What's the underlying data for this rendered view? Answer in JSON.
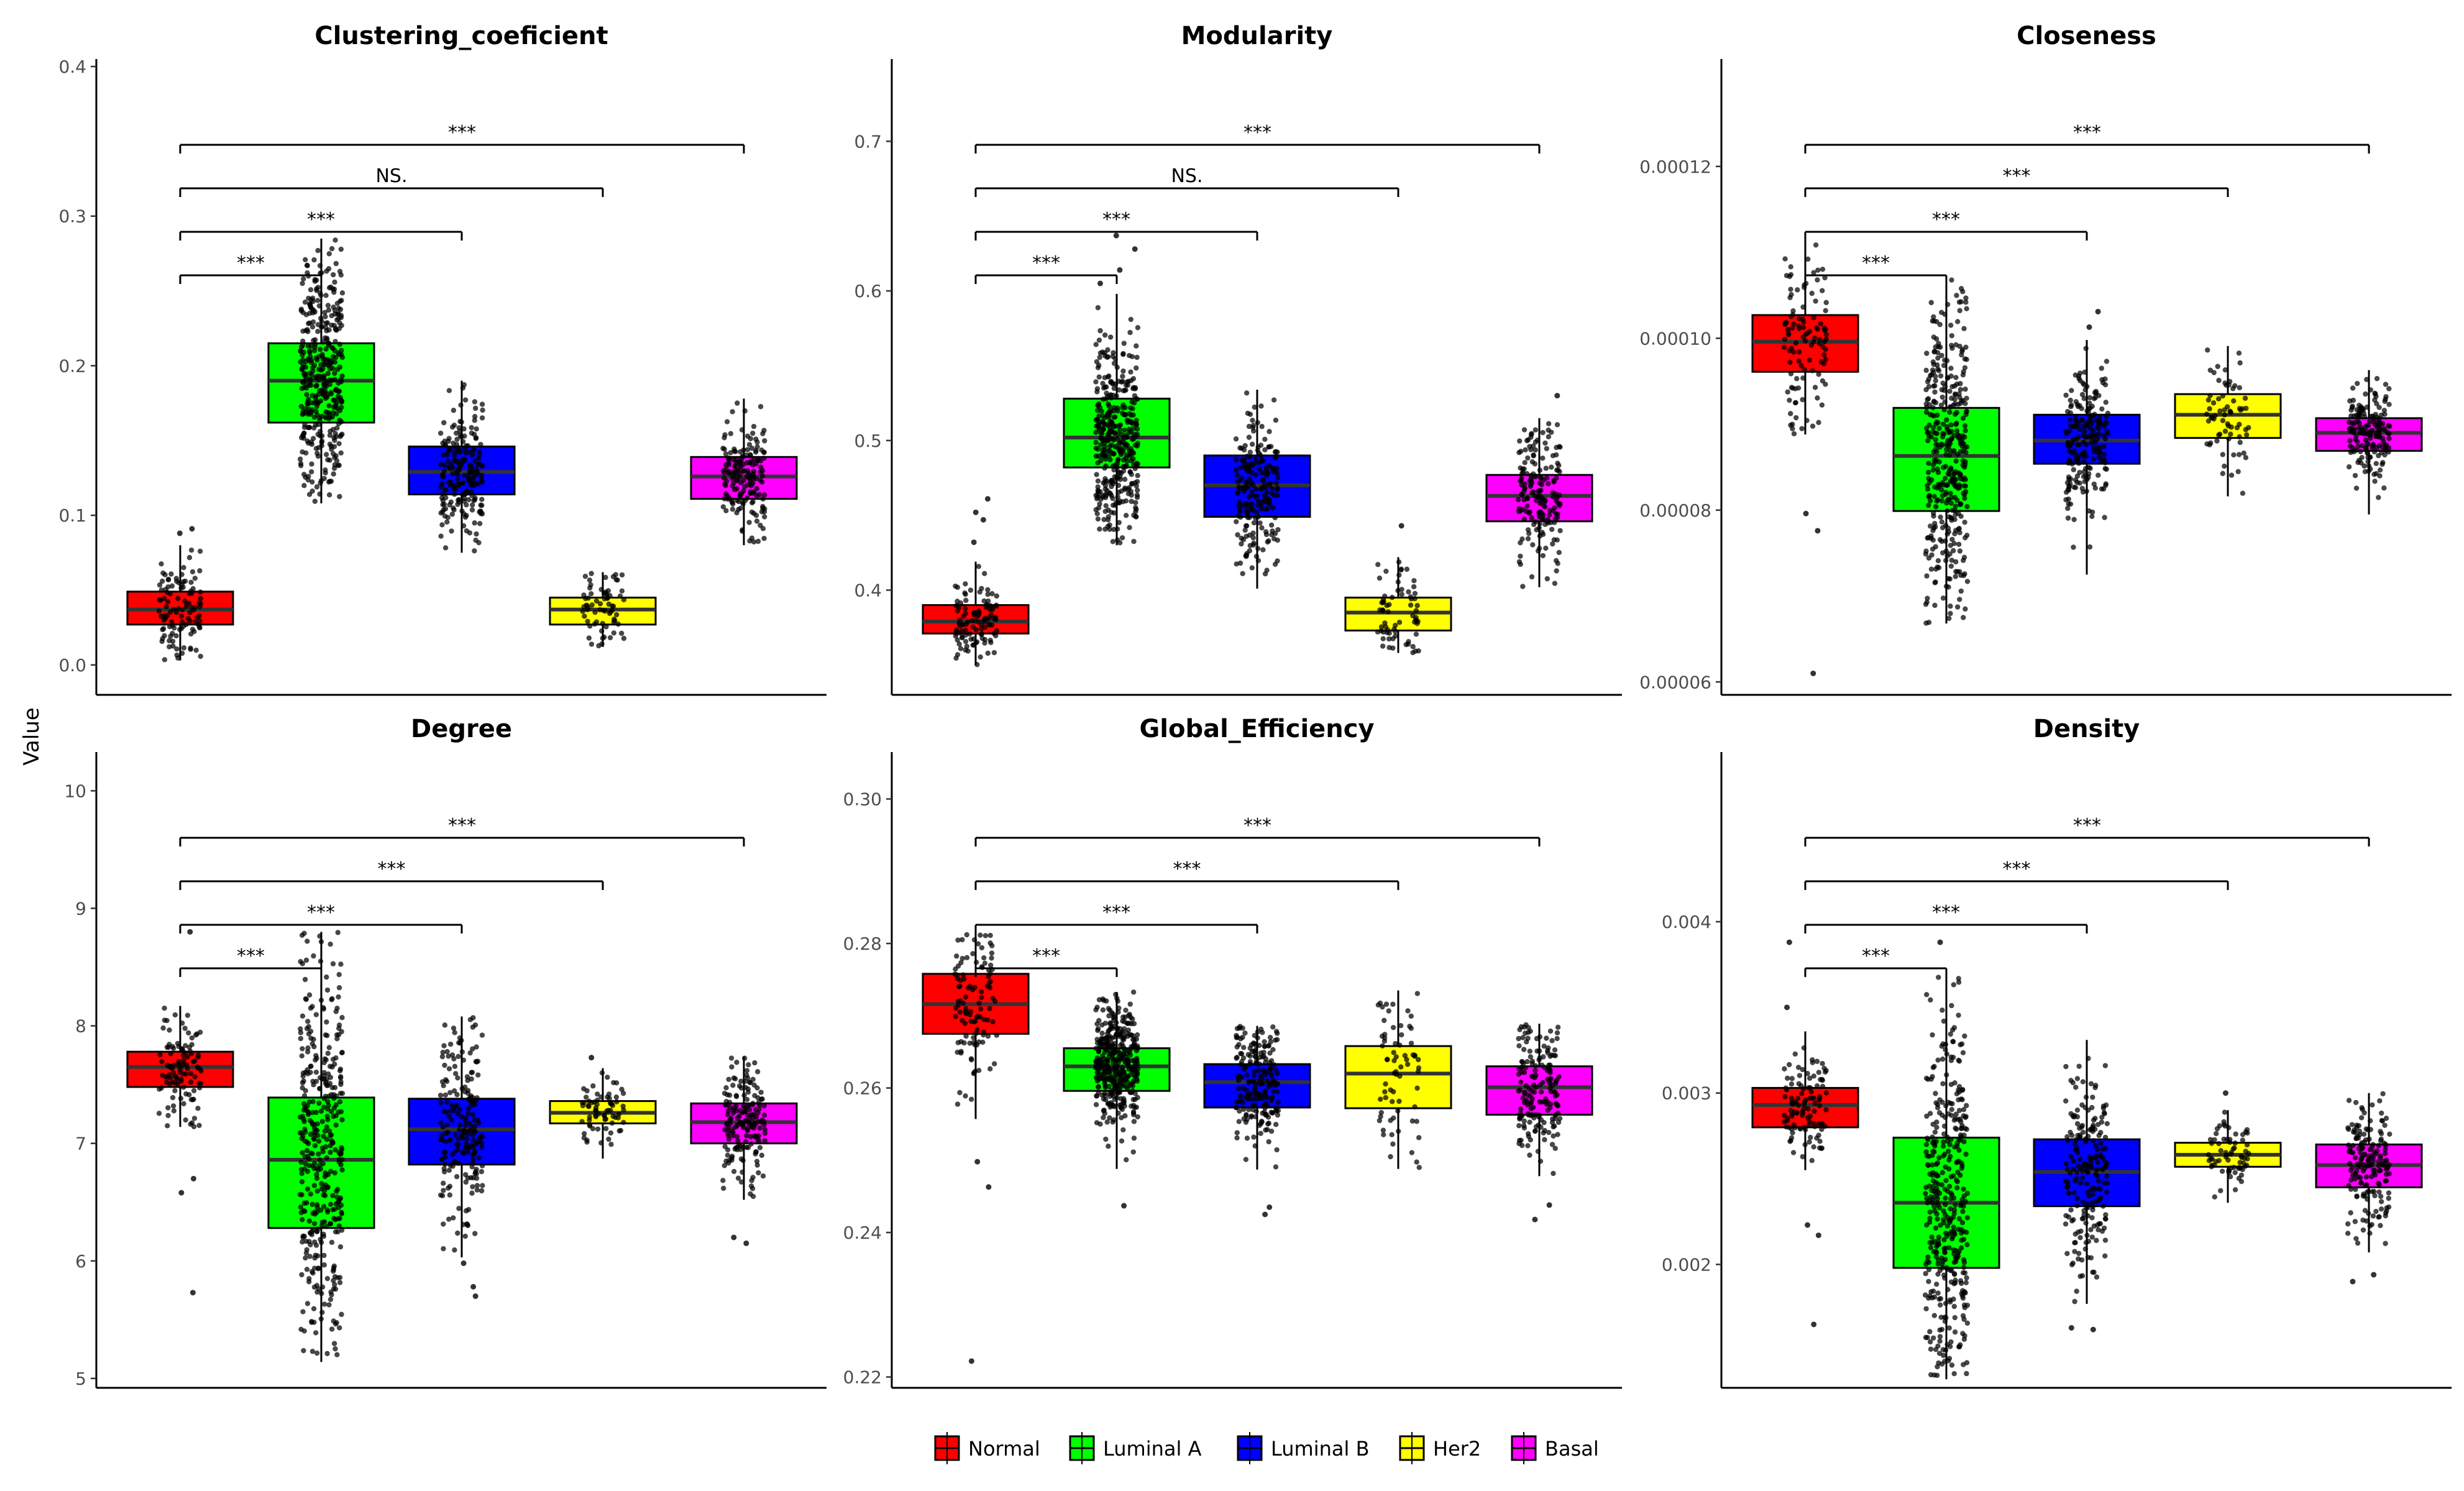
{
  "figure": {
    "ylabel": "Value",
    "legend": {
      "placement": "bottom",
      "entries": [
        {
          "name": "Normal",
          "color": "#ff0000"
        },
        {
          "name": "Luminal A",
          "color": "#00ff00"
        },
        {
          "name": "Luminal B",
          "color": "#0000ff"
        },
        {
          "name": "Her2",
          "color": "#ffff00"
        },
        {
          "name": "Basal",
          "color": "#ff00ff"
        }
      ]
    }
  },
  "chart_data": [
    {
      "type": "box",
      "title": "Clustering_coeficient",
      "ylim": [
        -0.02,
        0.405
      ],
      "yticks": [
        0.0,
        0.1,
        0.2,
        0.3,
        0.4
      ],
      "ytick_labels": [
        "0.0",
        "0.1",
        "0.2",
        "0.3",
        "0.4"
      ],
      "groups": [
        "Normal",
        "Luminal A",
        "Luminal B",
        "Her2",
        "Basal"
      ],
      "boxes": [
        {
          "group": "Normal",
          "q1": 0.027,
          "median": 0.037,
          "q3": 0.049,
          "whisker_low": 0.003,
          "whisker_high": 0.08,
          "outliers": [
            0.088,
            0.091
          ],
          "n_points": 110
        },
        {
          "group": "Luminal A",
          "q1": 0.162,
          "median": 0.19,
          "q3": 0.215,
          "whisker_low": 0.108,
          "whisker_high": 0.285,
          "outliers": [],
          "n_points": 400
        },
        {
          "group": "Luminal B",
          "q1": 0.114,
          "median": 0.129,
          "q3": 0.146,
          "whisker_low": 0.075,
          "whisker_high": 0.19,
          "outliers": [],
          "n_points": 210
        },
        {
          "group": "Her2",
          "q1": 0.027,
          "median": 0.037,
          "q3": 0.045,
          "whisker_low": 0.012,
          "whisker_high": 0.062,
          "outliers": [],
          "n_points": 70
        },
        {
          "group": "Basal",
          "q1": 0.111,
          "median": 0.126,
          "q3": 0.139,
          "whisker_low": 0.08,
          "whisker_high": 0.178,
          "outliers": [],
          "n_points": 180
        }
      ],
      "comparisons": [
        {
          "from": "Normal",
          "to": "Luminal A",
          "label": "***"
        },
        {
          "from": "Normal",
          "to": "Luminal B",
          "label": "***"
        },
        {
          "from": "Normal",
          "to": "Her2",
          "label": "NS."
        },
        {
          "from": "Normal",
          "to": "Basal",
          "label": "***"
        }
      ]
    },
    {
      "type": "box",
      "title": "Modularity",
      "ylim": [
        0.33,
        0.755
      ],
      "yticks": [
        0.4,
        0.5,
        0.6,
        0.7
      ],
      "ytick_labels": [
        "0.4",
        "0.5",
        "0.6",
        "0.7"
      ],
      "groups": [
        "Normal",
        "Luminal A",
        "Luminal B",
        "Her2",
        "Basal"
      ],
      "boxes": [
        {
          "group": "Normal",
          "q1": 0.371,
          "median": 0.379,
          "q3": 0.39,
          "whisker_low": 0.35,
          "whisker_high": 0.419,
          "outliers": [
            0.432,
            0.447,
            0.452,
            0.461
          ],
          "n_points": 110
        },
        {
          "group": "Luminal A",
          "q1": 0.482,
          "median": 0.502,
          "q3": 0.528,
          "whisker_low": 0.43,
          "whisker_high": 0.598,
          "outliers": [
            0.605,
            0.614,
            0.628,
            0.637
          ],
          "n_points": 400
        },
        {
          "group": "Luminal B",
          "q1": 0.449,
          "median": 0.47,
          "q3": 0.49,
          "whisker_low": 0.401,
          "whisker_high": 0.534,
          "outliers": [],
          "n_points": 210
        },
        {
          "group": "Her2",
          "q1": 0.373,
          "median": 0.385,
          "q3": 0.395,
          "whisker_low": 0.358,
          "whisker_high": 0.422,
          "outliers": [
            0.443
          ],
          "n_points": 70
        },
        {
          "group": "Basal",
          "q1": 0.446,
          "median": 0.463,
          "q3": 0.477,
          "whisker_low": 0.402,
          "whisker_high": 0.515,
          "outliers": [
            0.53
          ],
          "n_points": 180
        }
      ],
      "comparisons": [
        {
          "from": "Normal",
          "to": "Luminal A",
          "label": "***"
        },
        {
          "from": "Normal",
          "to": "Luminal B",
          "label": "***"
        },
        {
          "from": "Normal",
          "to": "Her2",
          "label": "NS."
        },
        {
          "from": "Normal",
          "to": "Basal",
          "label": "***"
        }
      ]
    },
    {
      "type": "box",
      "title": "Closeness",
      "ylim": [
        5.85e-05,
        0.0001325
      ],
      "yticks": [
        6e-05,
        8e-05,
        0.0001,
        0.00012
      ],
      "ytick_labels": [
        "0.00006",
        "0.00008",
        "0.00010",
        "0.00012"
      ],
      "groups": [
        "Normal",
        "Luminal A",
        "Luminal B",
        "Her2",
        "Basal"
      ],
      "boxes": [
        {
          "group": "Normal",
          "q1": 9.61e-05,
          "median": 9.96e-05,
          "q3": 0.0001027,
          "whisker_low": 8.88e-05,
          "whisker_high": 0.0001123,
          "outliers": [
            7.96e-05,
            7.76e-05,
            6.1e-05
          ],
          "n_points": 110
        },
        {
          "group": "Luminal A",
          "q1": 7.99e-05,
          "median": 8.63e-05,
          "q3": 9.19e-05,
          "whisker_low": 6.68e-05,
          "whisker_high": 0.0001068,
          "outliers": [],
          "n_points": 400
        },
        {
          "group": "Luminal B",
          "q1": 8.54e-05,
          "median": 8.81e-05,
          "q3": 9.11e-05,
          "whisker_low": 7.25e-05,
          "whisker_high": 9.98e-05,
          "outliers": [
            0.0001013,
            0.0001031
          ],
          "n_points": 210
        },
        {
          "group": "Her2",
          "q1": 8.84e-05,
          "median": 9.11e-05,
          "q3": 9.35e-05,
          "whisker_low": 8.16e-05,
          "whisker_high": 9.91e-05,
          "outliers": [],
          "n_points": 70
        },
        {
          "group": "Basal",
          "q1": 8.69e-05,
          "median": 8.9e-05,
          "q3": 9.07e-05,
          "whisker_low": 7.95e-05,
          "whisker_high": 9.63e-05,
          "outliers": [],
          "n_points": 180
        }
      ],
      "comparisons": [
        {
          "from": "Normal",
          "to": "Luminal A",
          "label": "***"
        },
        {
          "from": "Normal",
          "to": "Luminal B",
          "label": "***"
        },
        {
          "from": "Normal",
          "to": "Her2",
          "label": "***"
        },
        {
          "from": "Normal",
          "to": "Basal",
          "label": "***"
        }
      ]
    },
    {
      "type": "box",
      "title": "Degree",
      "ylim": [
        4.92,
        10.33
      ],
      "yticks": [
        5,
        6,
        7,
        8,
        9,
        10
      ],
      "ytick_labels": [
        "5",
        "6",
        "7",
        "8",
        "9",
        "10"
      ],
      "groups": [
        "Normal",
        "Luminal A",
        "Luminal B",
        "Her2",
        "Basal"
      ],
      "boxes": [
        {
          "group": "Normal",
          "q1": 7.48,
          "median": 7.65,
          "q3": 7.78,
          "whisker_low": 7.14,
          "whisker_high": 8.17,
          "outliers": [
            8.8,
            6.7,
            6.58,
            5.73
          ],
          "n_points": 110
        },
        {
          "group": "Luminal A",
          "q1": 6.28,
          "median": 6.86,
          "q3": 7.39,
          "whisker_low": 5.14,
          "whisker_high": 8.8,
          "outliers": [],
          "n_points": 400
        },
        {
          "group": "Luminal B",
          "q1": 6.82,
          "median": 7.12,
          "q3": 7.38,
          "whisker_low": 6.03,
          "whisker_high": 8.08,
          "outliers": [
            5.98,
            5.78,
            5.7
          ],
          "n_points": 210
        },
        {
          "group": "Her2",
          "q1": 7.17,
          "median": 7.26,
          "q3": 7.36,
          "whisker_low": 6.87,
          "whisker_high": 7.64,
          "outliers": [
            7.73
          ],
          "n_points": 70
        },
        {
          "group": "Basal",
          "q1": 7.0,
          "median": 7.18,
          "q3": 7.34,
          "whisker_low": 6.52,
          "whisker_high": 7.74,
          "outliers": [
            6.2,
            6.15
          ],
          "n_points": 180
        }
      ],
      "comparisons": [
        {
          "from": "Normal",
          "to": "Luminal A",
          "label": "***"
        },
        {
          "from": "Normal",
          "to": "Luminal B",
          "label": "***"
        },
        {
          "from": "Normal",
          "to": "Her2",
          "label": "***"
        },
        {
          "from": "Normal",
          "to": "Basal",
          "label": "***"
        }
      ]
    },
    {
      "type": "box",
      "title": "Global_Efficiency",
      "ylim": [
        0.2185,
        0.3065
      ],
      "yticks": [
        0.22,
        0.24,
        0.26,
        0.28,
        0.3
      ],
      "ytick_labels": [
        "0.22",
        "0.24",
        "0.26",
        "0.28",
        "0.30"
      ],
      "groups": [
        "Normal",
        "Luminal A",
        "Luminal B",
        "Her2",
        "Basal"
      ],
      "boxes": [
        {
          "group": "Normal",
          "q1": 0.2675,
          "median": 0.2716,
          "q3": 0.2758,
          "whisker_low": 0.2557,
          "whisker_high": 0.2818,
          "outliers": [
            0.2498,
            0.2463,
            0.2222
          ],
          "n_points": 110
        },
        {
          "group": "Luminal A",
          "q1": 0.2596,
          "median": 0.263,
          "q3": 0.2655,
          "whisker_low": 0.2488,
          "whisker_high": 0.2733,
          "outliers": [
            0.2437
          ],
          "n_points": 400
        },
        {
          "group": "Luminal B",
          "q1": 0.2573,
          "median": 0.2608,
          "q3": 0.2633,
          "whisker_low": 0.2487,
          "whisker_high": 0.2686,
          "outliers": [
            0.2435,
            0.2425
          ],
          "n_points": 210
        },
        {
          "group": "Her2",
          "q1": 0.2572,
          "median": 0.262,
          "q3": 0.2658,
          "whisker_low": 0.2488,
          "whisker_high": 0.2735,
          "outliers": [],
          "n_points": 70
        },
        {
          "group": "Basal",
          "q1": 0.2563,
          "median": 0.2601,
          "q3": 0.263,
          "whisker_low": 0.2478,
          "whisker_high": 0.2689,
          "outliers": [
            0.2438,
            0.2418
          ],
          "n_points": 180
        }
      ],
      "comparisons": [
        {
          "from": "Normal",
          "to": "Luminal A",
          "label": "***"
        },
        {
          "from": "Normal",
          "to": "Luminal B",
          "label": "***"
        },
        {
          "from": "Normal",
          "to": "Her2",
          "label": "***"
        },
        {
          "from": "Normal",
          "to": "Basal",
          "label": "***"
        }
      ]
    },
    {
      "type": "box",
      "title": "Density",
      "ylim": [
        0.00128,
        0.00499
      ],
      "yticks": [
        0.002,
        0.003,
        0.004
      ],
      "ytick_labels": [
        "0.002",
        "0.003",
        "0.004"
      ],
      "groups": [
        "Normal",
        "Luminal A",
        "Luminal B",
        "Her2",
        "Basal"
      ],
      "boxes": [
        {
          "group": "Normal",
          "q1": 0.0028,
          "median": 0.00293,
          "q3": 0.00303,
          "whisker_low": 0.00255,
          "whisker_high": 0.00336,
          "outliers": [
            0.00388,
            0.0035,
            0.00223,
            0.00217,
            0.00165
          ],
          "n_points": 110
        },
        {
          "group": "Luminal A",
          "q1": 0.00198,
          "median": 0.00236,
          "q3": 0.00274,
          "whisker_low": 0.00133,
          "whisker_high": 0.00371,
          "outliers": [
            0.00388
          ],
          "n_points": 400
        },
        {
          "group": "Luminal B",
          "q1": 0.00234,
          "median": 0.00254,
          "q3": 0.00273,
          "whisker_low": 0.00177,
          "whisker_high": 0.00331,
          "outliers": [
            0.00163,
            0.00162
          ],
          "n_points": 210
        },
        {
          "group": "Her2",
          "q1": 0.00257,
          "median": 0.00264,
          "q3": 0.00271,
          "whisker_low": 0.00236,
          "whisker_high": 0.0029,
          "outliers": [
            0.003
          ],
          "n_points": 70
        },
        {
          "group": "Basal",
          "q1": 0.00245,
          "median": 0.00258,
          "q3": 0.0027,
          "whisker_low": 0.00207,
          "whisker_high": 0.003,
          "outliers": [
            0.00194,
            0.0019
          ],
          "n_points": 180
        }
      ],
      "comparisons": [
        {
          "from": "Normal",
          "to": "Luminal A",
          "label": "***"
        },
        {
          "from": "Normal",
          "to": "Luminal B",
          "label": "***"
        },
        {
          "from": "Normal",
          "to": "Her2",
          "label": "***"
        },
        {
          "from": "Normal",
          "to": "Basal",
          "label": "***"
        }
      ]
    }
  ]
}
